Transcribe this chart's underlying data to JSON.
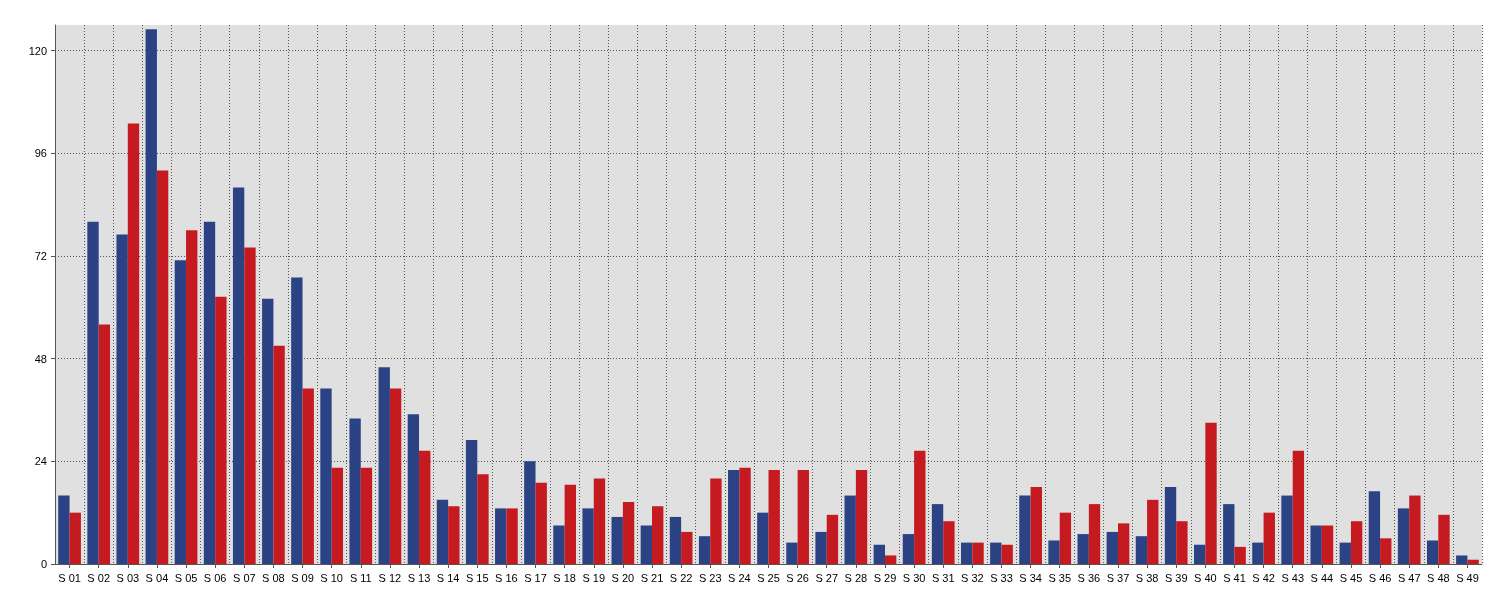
{
  "chart_data": {
    "type": "bar",
    "categories": [
      "S 01",
      "S 02",
      "S 03",
      "S 04",
      "S 05",
      "S 06",
      "S 07",
      "S 08",
      "S 09",
      "S 10",
      "S 11",
      "S 12",
      "S 13",
      "S 14",
      "S 15",
      "S 16",
      "S 17",
      "S 18",
      "S 19",
      "S 20",
      "S 21",
      "S 22",
      "S 23",
      "S 24",
      "S 25",
      "S 26",
      "S 27",
      "S 28",
      "S 29",
      "S 30",
      "S 31",
      "S 32",
      "S 33",
      "S 34",
      "S 35",
      "S 36",
      "S 37",
      "S 38",
      "S 39",
      "S 40",
      "S 41",
      "S 42",
      "S 43",
      "S 44",
      "S 45",
      "S 46",
      "S 47",
      "S 48",
      "S 49"
    ],
    "series": [
      {
        "color": "#2b4384",
        "values": [
          16,
          80,
          77,
          125,
          71,
          80,
          88,
          62,
          67,
          41,
          34,
          46,
          35,
          15,
          29,
          13,
          24,
          9,
          13,
          11,
          9,
          11,
          6.5,
          22,
          12,
          5,
          7.5,
          16,
          4.5,
          7,
          14,
          5,
          5,
          16,
          5.5,
          7,
          7.5,
          6.5,
          18,
          4.5,
          14,
          5,
          16,
          9,
          5,
          17,
          13,
          5.5,
          2
        ]
      },
      {
        "color": "#c41a20",
        "values": [
          12,
          56,
          103,
          92,
          78,
          62.5,
          74,
          51,
          41,
          22.5,
          22.5,
          41,
          26.5,
          13.5,
          21,
          13,
          19,
          18.5,
          20,
          14.5,
          13.5,
          7.5,
          20,
          22.5,
          22,
          22,
          11.5,
          22,
          2,
          26.5,
          10,
          5,
          4.5,
          18,
          12,
          14,
          9.5,
          15,
          10,
          33,
          4,
          12,
          26.5,
          9,
          10,
          6,
          16,
          11.5,
          1
        ]
      }
    ],
    "ylim": [
      0,
      126
    ],
    "yticks": [
      0,
      24,
      48,
      72,
      96,
      120
    ],
    "grid": true
  }
}
